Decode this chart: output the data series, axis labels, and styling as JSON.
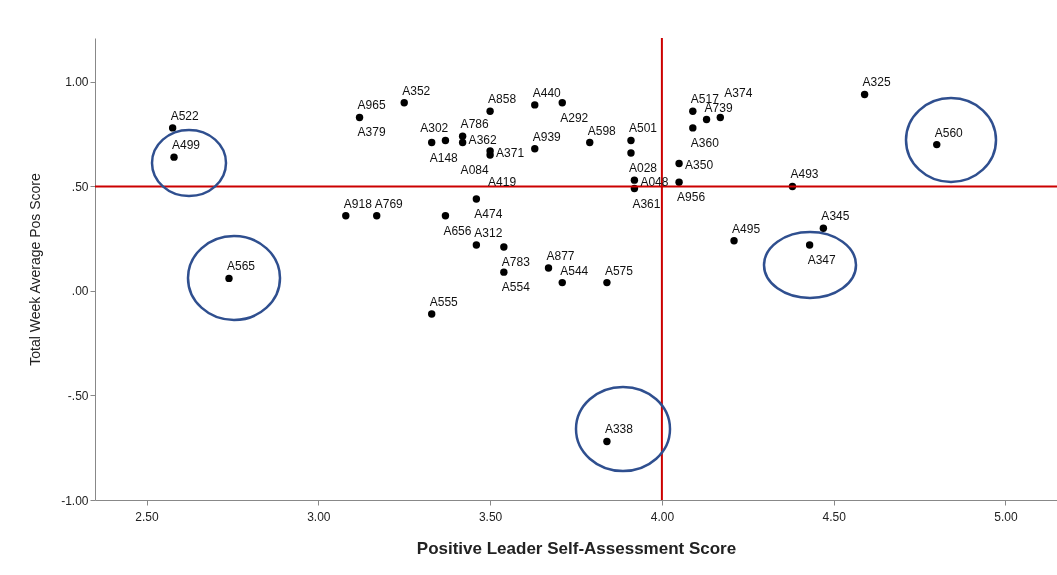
{
  "chart_data": {
    "type": "scatter",
    "xlabel": "Positive Leader Self-Assessment Score",
    "ylabel": "Total Week Average Pos Score",
    "x": [
      2.576,
      2.58,
      2.74,
      3.12,
      3.25,
      3.08,
      3.17,
      3.33,
      3.37,
      3.42,
      3.42,
      3.5,
      3.5,
      3.5,
      3.63,
      3.71,
      3.63,
      3.79,
      3.91,
      3.91,
      3.46,
      3.37,
      3.92,
      3.92,
      3.46,
      3.54,
      3.54,
      3.67,
      3.71,
      3.84,
      3.33,
      4.09,
      4.09,
      4.13,
      4.17,
      4.05,
      4.05,
      4.38,
      4.59,
      4.8,
      4.47,
      4.21,
      4.43,
      3.84
    ],
    "series": [
      {
        "color": "#000000",
        "values": [
          0.78,
          0.64,
          0.06,
          0.83,
          0.9,
          0.36,
          0.36,
          0.71,
          0.72,
          0.74,
          0.71,
          0.86,
          0.67,
          0.65,
          0.89,
          0.9,
          0.68,
          0.71,
          0.72,
          0.66,
          0.44,
          0.36,
          0.53,
          0.49,
          0.22,
          0.21,
          0.09,
          0.11,
          0.04,
          0.04,
          -0.11,
          0.86,
          0.78,
          0.82,
          0.83,
          0.61,
          0.52,
          0.5,
          0.94,
          0.7,
          0.3,
          0.24,
          0.22,
          -0.72
        ]
      }
    ],
    "annotations": [
      {
        "text": "A522",
        "x": 2.576,
        "y": 0.78
      },
      {
        "text": "A499",
        "x": 2.58,
        "y": 0.64
      },
      {
        "text": "A565",
        "x": 2.74,
        "y": 0.06
      },
      {
        "text": "A965",
        "x": 3.12,
        "y": 0.83
      },
      {
        "text": "A379",
        "x": 3.12,
        "y": 0.83
      },
      {
        "text": "A352",
        "x": 3.25,
        "y": 0.9
      },
      {
        "text": "A918",
        "x": 3.08,
        "y": 0.36
      },
      {
        "text": "A769",
        "x": 3.17,
        "y": 0.36
      },
      {
        "text": "A148",
        "x": 3.33,
        "y": 0.71
      },
      {
        "text": "A302",
        "x": 3.37,
        "y": 0.72
      },
      {
        "text": "A786",
        "x": 3.42,
        "y": 0.74
      },
      {
        "text": "A362",
        "x": 3.42,
        "y": 0.73
      },
      {
        "text": "A084",
        "x": 3.42,
        "y": 0.71
      },
      {
        "text": "A858",
        "x": 3.5,
        "y": 0.86
      },
      {
        "text": "A371",
        "x": 3.5,
        "y": 0.67
      },
      {
        "text": "A419",
        "x": 3.5,
        "y": 0.65
      },
      {
        "text": "A440",
        "x": 3.63,
        "y": 0.89
      },
      {
        "text": "A292",
        "x": 3.71,
        "y": 0.9
      },
      {
        "text": "A939",
        "x": 3.63,
        "y": 0.68
      },
      {
        "text": "A598",
        "x": 3.79,
        "y": 0.71
      },
      {
        "text": "A501",
        "x": 3.91,
        "y": 0.72
      },
      {
        "text": "A028",
        "x": 3.91,
        "y": 0.66
      },
      {
        "text": "A474",
        "x": 3.46,
        "y": 0.44
      },
      {
        "text": "A656",
        "x": 3.37,
        "y": 0.36
      },
      {
        "text": "A048",
        "x": 3.92,
        "y": 0.53
      },
      {
        "text": "A361",
        "x": 3.92,
        "y": 0.49
      },
      {
        "text": "A312",
        "x": 3.46,
        "y": 0.22
      },
      {
        "text": "A783",
        "x": 3.54,
        "y": 0.21
      },
      {
        "text": "A554",
        "x": 3.54,
        "y": 0.09
      },
      {
        "text": "A877",
        "x": 3.67,
        "y": 0.11
      },
      {
        "text": "A544",
        "x": 3.71,
        "y": 0.04
      },
      {
        "text": "A575",
        "x": 3.84,
        "y": 0.04
      },
      {
        "text": "A555",
        "x": 3.33,
        "y": -0.11
      },
      {
        "text": "A517",
        "x": 4.09,
        "y": 0.86
      },
      {
        "text": "A360",
        "x": 4.09,
        "y": 0.78
      },
      {
        "text": "A739",
        "x": 4.13,
        "y": 0.82
      },
      {
        "text": "A374",
        "x": 4.17,
        "y": 0.83
      },
      {
        "text": "A350",
        "x": 4.05,
        "y": 0.61
      },
      {
        "text": "A956",
        "x": 4.05,
        "y": 0.52
      },
      {
        "text": "A493",
        "x": 4.38,
        "y": 0.5
      },
      {
        "text": "A325",
        "x": 4.59,
        "y": 0.94
      },
      {
        "text": "A560",
        "x": 4.8,
        "y": 0.7
      },
      {
        "text": "A345",
        "x": 4.47,
        "y": 0.3
      },
      {
        "text": "A495",
        "x": 4.21,
        "y": 0.24
      },
      {
        "text": "A347",
        "x": 4.43,
        "y": 0.22
      },
      {
        "text": "A338",
        "x": 3.84,
        "y": -0.72
      }
    ],
    "xlim": [
      2.35,
      5.15
    ],
    "ylim": [
      -1.0,
      1.21
    ],
    "xticks": [
      {
        "value": 2.5,
        "label": "2.50"
      },
      {
        "value": 3,
        "label": "3.00"
      },
      {
        "value": 3.5,
        "label": "3.50"
      },
      {
        "value": 4,
        "label": "4.00"
      },
      {
        "value": 4.5,
        "label": "4.50"
      },
      {
        "value": 5,
        "label": "5.00"
      }
    ],
    "yticks": [
      {
        "value": -1,
        "label": "-1.00"
      },
      {
        "value": -0.5,
        "label": "-.50"
      },
      {
        "value": 0,
        "label": ".00"
      },
      {
        "value": 0.5,
        "label": ".50"
      },
      {
        "value": 1,
        "label": "1.00"
      }
    ],
    "ref_lines": [
      {
        "axis": "x",
        "value": 4.0,
        "color": "#cc0000"
      },
      {
        "axis": "y",
        "value": 0.5,
        "color": "#cc0000"
      }
    ],
    "grid": false,
    "marker": "circle"
  }
}
